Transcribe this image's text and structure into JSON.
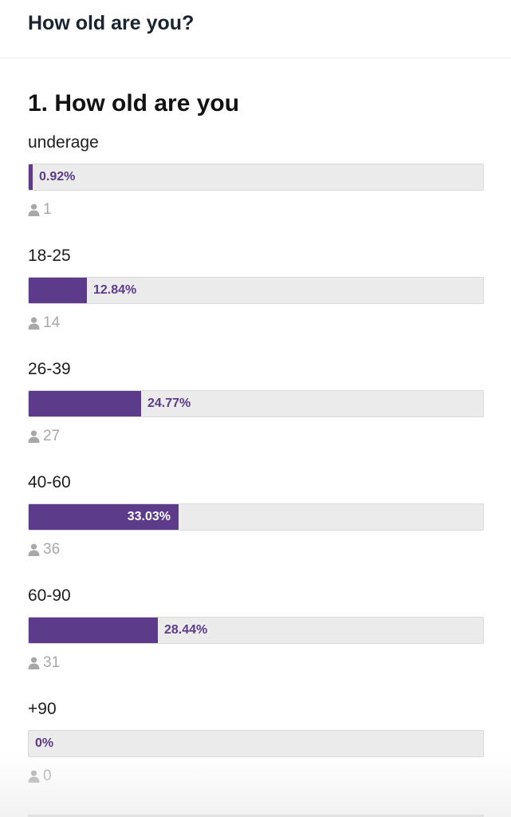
{
  "header": {
    "title": "How old are you?"
  },
  "question": {
    "title": "1. How old are you",
    "options": [
      {
        "label": "underage",
        "percent_label": "0.92%",
        "percent": 0.92,
        "count": "1"
      },
      {
        "label": "18-25",
        "percent_label": "12.84%",
        "percent": 12.84,
        "count": "14"
      },
      {
        "label": "26-39",
        "percent_label": "24.77%",
        "percent": 24.77,
        "count": "27"
      },
      {
        "label": "40-60",
        "percent_label": "33.03%",
        "percent": 33.03,
        "count": "36"
      },
      {
        "label": "60-90",
        "percent_label": "28.44%",
        "percent": 28.44,
        "count": "31"
      },
      {
        "label": "+90",
        "percent_label": "0%",
        "percent": 0,
        "count": "0"
      }
    ]
  },
  "colors": {
    "bar_fill": "#5b3b8a",
    "bar_track": "#ebebeb",
    "count_text": "#a8a8a8"
  },
  "icons": {
    "count_icon": "person-icon"
  }
}
